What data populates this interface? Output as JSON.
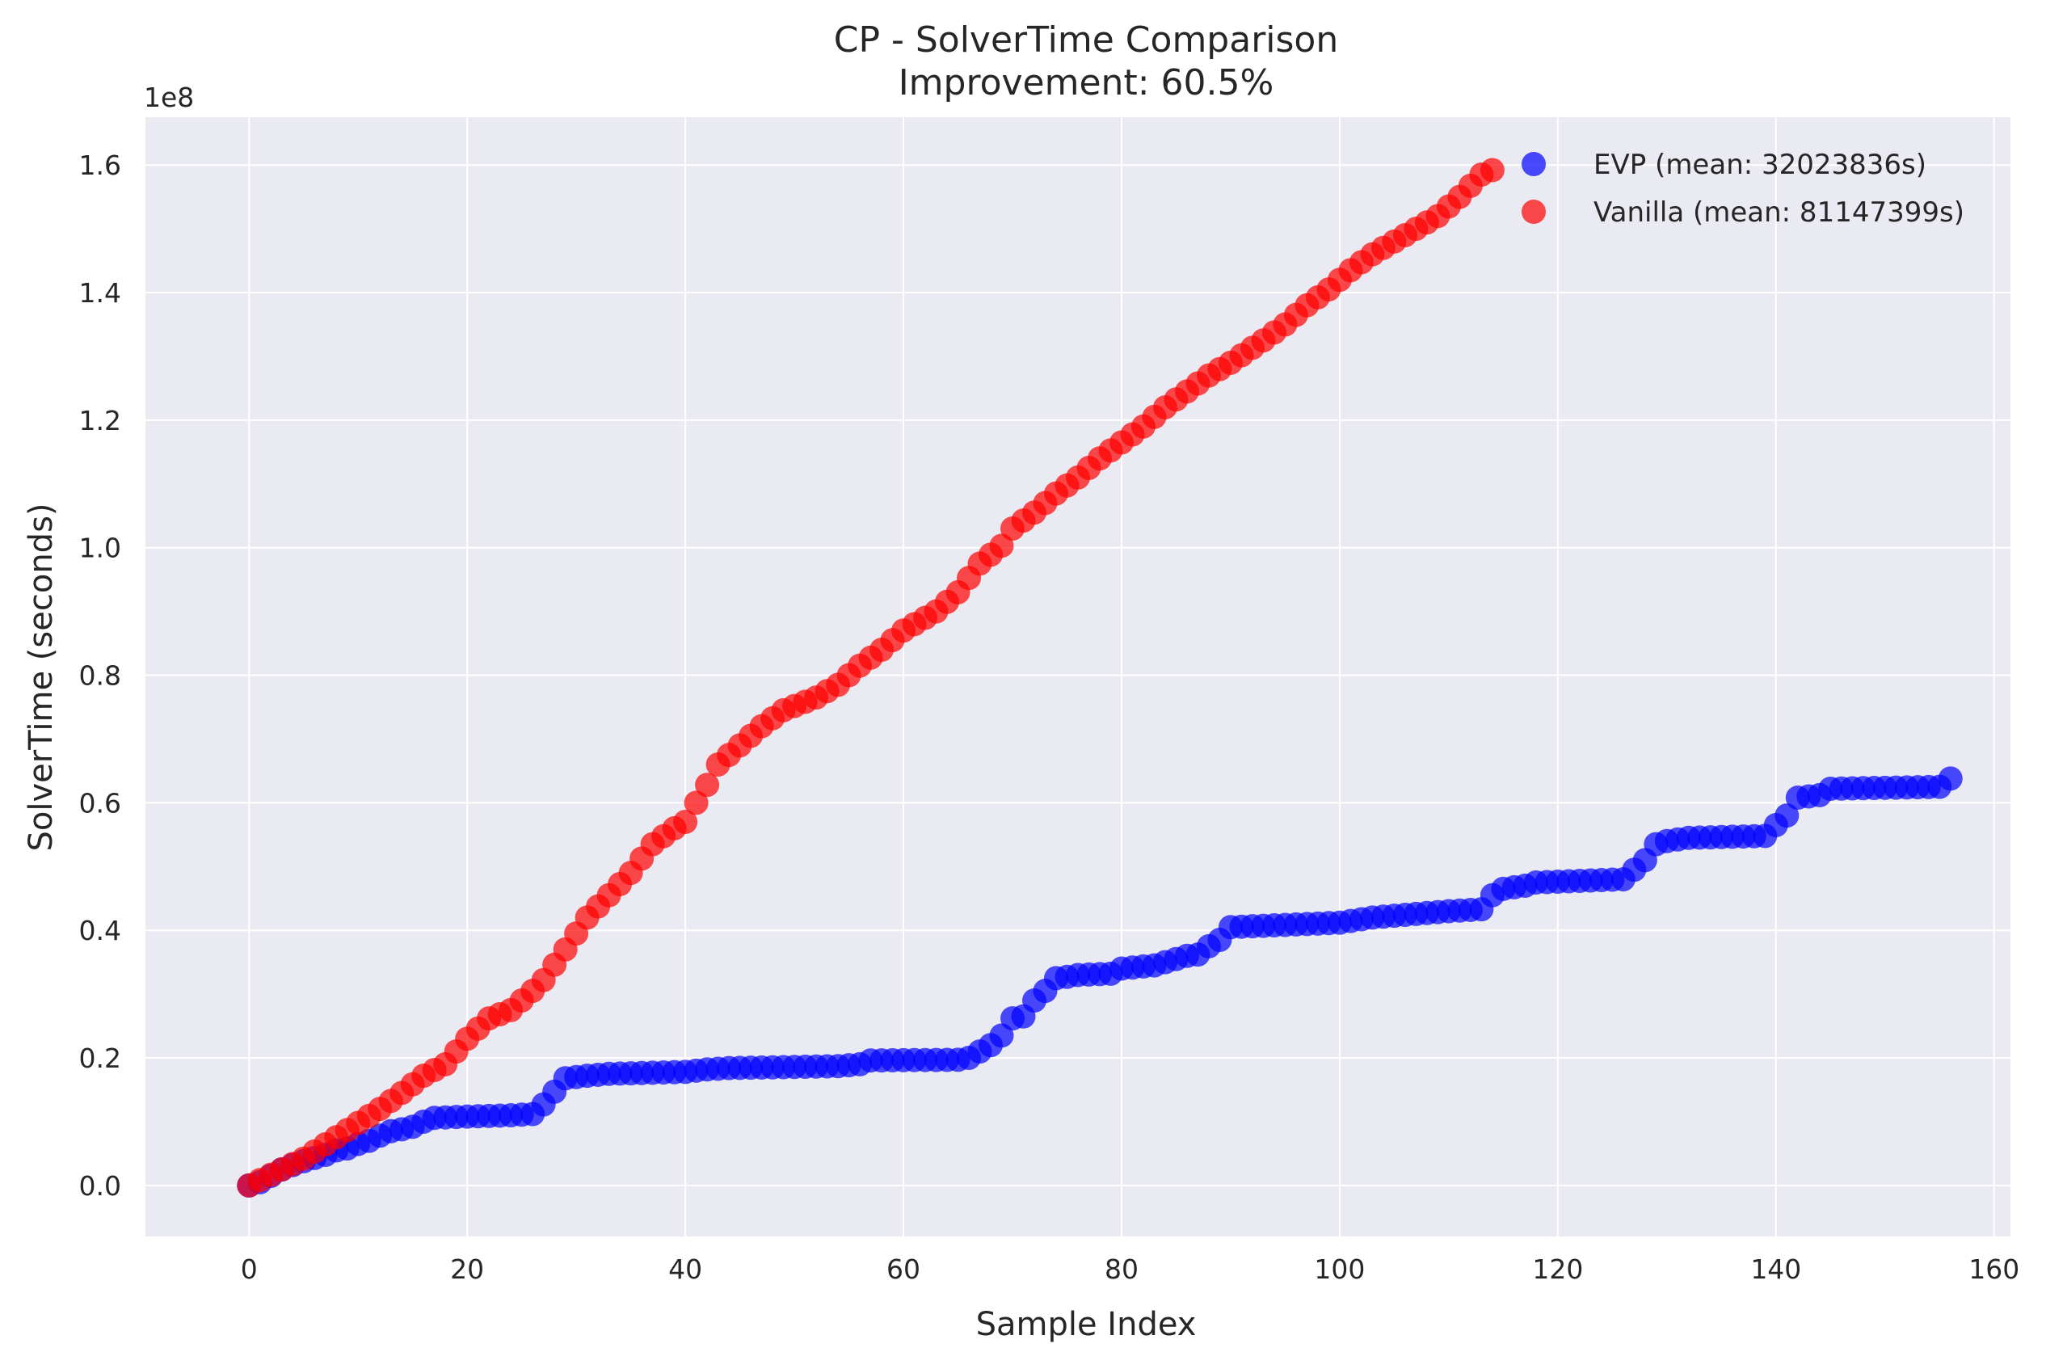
{
  "chart_data": {
    "type": "scatter",
    "title": "CP - SolverTime Comparison",
    "subtitle": "Improvement: 60.5%",
    "xlabel": "Sample Index",
    "ylabel": "SolverTime (seconds)",
    "y_offset_label": "1e8",
    "xlim": [
      -9.5,
      161.5
    ],
    "ylim": [
      -0.08,
      1.675
    ],
    "y_unit_scale": 100000000,
    "xticks": [
      0,
      20,
      40,
      60,
      80,
      100,
      120,
      140,
      160
    ],
    "xtick_labels": [
      "0",
      "20",
      "40",
      "60",
      "80",
      "100",
      "120",
      "140",
      "160"
    ],
    "yticks": [
      0.0,
      0.2,
      0.4,
      0.6,
      0.8,
      1.0,
      1.2,
      1.4,
      1.6
    ],
    "ytick_labels": [
      "0.0",
      "0.2",
      "0.4",
      "0.6",
      "0.8",
      "1.0",
      "1.2",
      "1.4",
      "1.6"
    ],
    "grid": true,
    "legend_position": "top-right",
    "series": [
      {
        "name": "EVP (mean: 32023836s)",
        "color": "#0000ff",
        "breakpoints": [
          [
            0,
            0.0
          ],
          [
            1,
            0.005
          ],
          [
            2,
            0.015
          ],
          [
            3,
            0.025
          ],
          [
            4,
            0.032
          ],
          [
            5,
            0.038
          ],
          [
            6,
            0.043
          ],
          [
            7,
            0.048
          ],
          [
            8,
            0.055
          ],
          [
            9,
            0.058
          ],
          [
            10,
            0.065
          ],
          [
            11,
            0.07
          ],
          [
            12,
            0.078
          ],
          [
            13,
            0.085
          ],
          [
            14,
            0.088
          ],
          [
            15,
            0.092
          ],
          [
            16,
            0.1
          ],
          [
            17,
            0.106
          ],
          [
            20,
            0.108
          ],
          [
            24,
            0.11
          ],
          [
            26,
            0.112
          ],
          [
            27,
            0.127
          ],
          [
            28,
            0.147
          ],
          [
            29,
            0.168
          ],
          [
            31,
            0.172
          ],
          [
            33,
            0.175
          ],
          [
            40,
            0.178
          ],
          [
            42,
            0.182
          ],
          [
            44,
            0.184
          ],
          [
            54,
            0.187
          ],
          [
            56,
            0.19
          ],
          [
            57,
            0.196
          ],
          [
            65,
            0.197
          ],
          [
            66,
            0.2
          ],
          [
            67,
            0.21
          ],
          [
            68,
            0.22
          ],
          [
            69,
            0.235
          ],
          [
            70,
            0.262
          ],
          [
            71,
            0.265
          ],
          [
            72,
            0.29
          ],
          [
            73,
            0.305
          ],
          [
            74,
            0.325
          ],
          [
            75,
            0.327
          ],
          [
            76,
            0.33
          ],
          [
            79,
            0.332
          ],
          [
            80,
            0.34
          ],
          [
            83,
            0.345
          ],
          [
            84,
            0.35
          ],
          [
            85,
            0.355
          ],
          [
            86,
            0.36
          ],
          [
            87,
            0.362
          ],
          [
            88,
            0.375
          ],
          [
            89,
            0.385
          ],
          [
            90,
            0.405
          ],
          [
            100,
            0.412
          ],
          [
            103,
            0.42
          ],
          [
            110,
            0.43
          ],
          [
            113,
            0.433
          ],
          [
            114,
            0.455
          ],
          [
            115,
            0.465
          ],
          [
            117,
            0.47
          ],
          [
            118,
            0.475
          ],
          [
            126,
            0.48
          ],
          [
            127,
            0.495
          ],
          [
            128,
            0.51
          ],
          [
            129,
            0.535
          ],
          [
            130,
            0.54
          ],
          [
            132,
            0.545
          ],
          [
            139,
            0.548
          ],
          [
            140,
            0.565
          ],
          [
            141,
            0.58
          ],
          [
            142,
            0.608
          ],
          [
            144,
            0.612
          ],
          [
            145,
            0.622
          ],
          [
            155,
            0.625
          ],
          [
            156,
            0.638
          ]
        ],
        "x_end": 156
      },
      {
        "name": "Vanilla (mean: 81147399s)",
        "color": "#ff0000",
        "breakpoints": [
          [
            0,
            0.0
          ],
          [
            5,
            0.042
          ],
          [
            10,
            0.098
          ],
          [
            12,
            0.12
          ],
          [
            14,
            0.145
          ],
          [
            16,
            0.172
          ],
          [
            18,
            0.19
          ],
          [
            20,
            0.23
          ],
          [
            22,
            0.262
          ],
          [
            24,
            0.275
          ],
          [
            26,
            0.305
          ],
          [
            27,
            0.322
          ],
          [
            29,
            0.37
          ],
          [
            31,
            0.42
          ],
          [
            33,
            0.455
          ],
          [
            35,
            0.49
          ],
          [
            37,
            0.535
          ],
          [
            39,
            0.56
          ],
          [
            40,
            0.57
          ],
          [
            41,
            0.6
          ],
          [
            42,
            0.628
          ],
          [
            43,
            0.66
          ],
          [
            45,
            0.69
          ],
          [
            47,
            0.72
          ],
          [
            49,
            0.745
          ],
          [
            52,
            0.765
          ],
          [
            54,
            0.785
          ],
          [
            56,
            0.815
          ],
          [
            58,
            0.84
          ],
          [
            60,
            0.87
          ],
          [
            63,
            0.9
          ],
          [
            65,
            0.93
          ],
          [
            67,
            0.975
          ],
          [
            69,
            1.003
          ],
          [
            70,
            1.03
          ],
          [
            72,
            1.055
          ],
          [
            74,
            1.085
          ],
          [
            76,
            1.11
          ],
          [
            78,
            1.14
          ],
          [
            80,
            1.165
          ],
          [
            82,
            1.19
          ],
          [
            84,
            1.22
          ],
          [
            86,
            1.245
          ],
          [
            88,
            1.27
          ],
          [
            90,
            1.29
          ],
          [
            93,
            1.325
          ],
          [
            95,
            1.35
          ],
          [
            97,
            1.38
          ],
          [
            99,
            1.405
          ],
          [
            101,
            1.435
          ],
          [
            103,
            1.46
          ],
          [
            105,
            1.48
          ],
          [
            107,
            1.5
          ],
          [
            109,
            1.52
          ],
          [
            111,
            1.55
          ],
          [
            113,
            1.585
          ],
          [
            114,
            1.592
          ]
        ],
        "x_end": 114
      }
    ]
  }
}
